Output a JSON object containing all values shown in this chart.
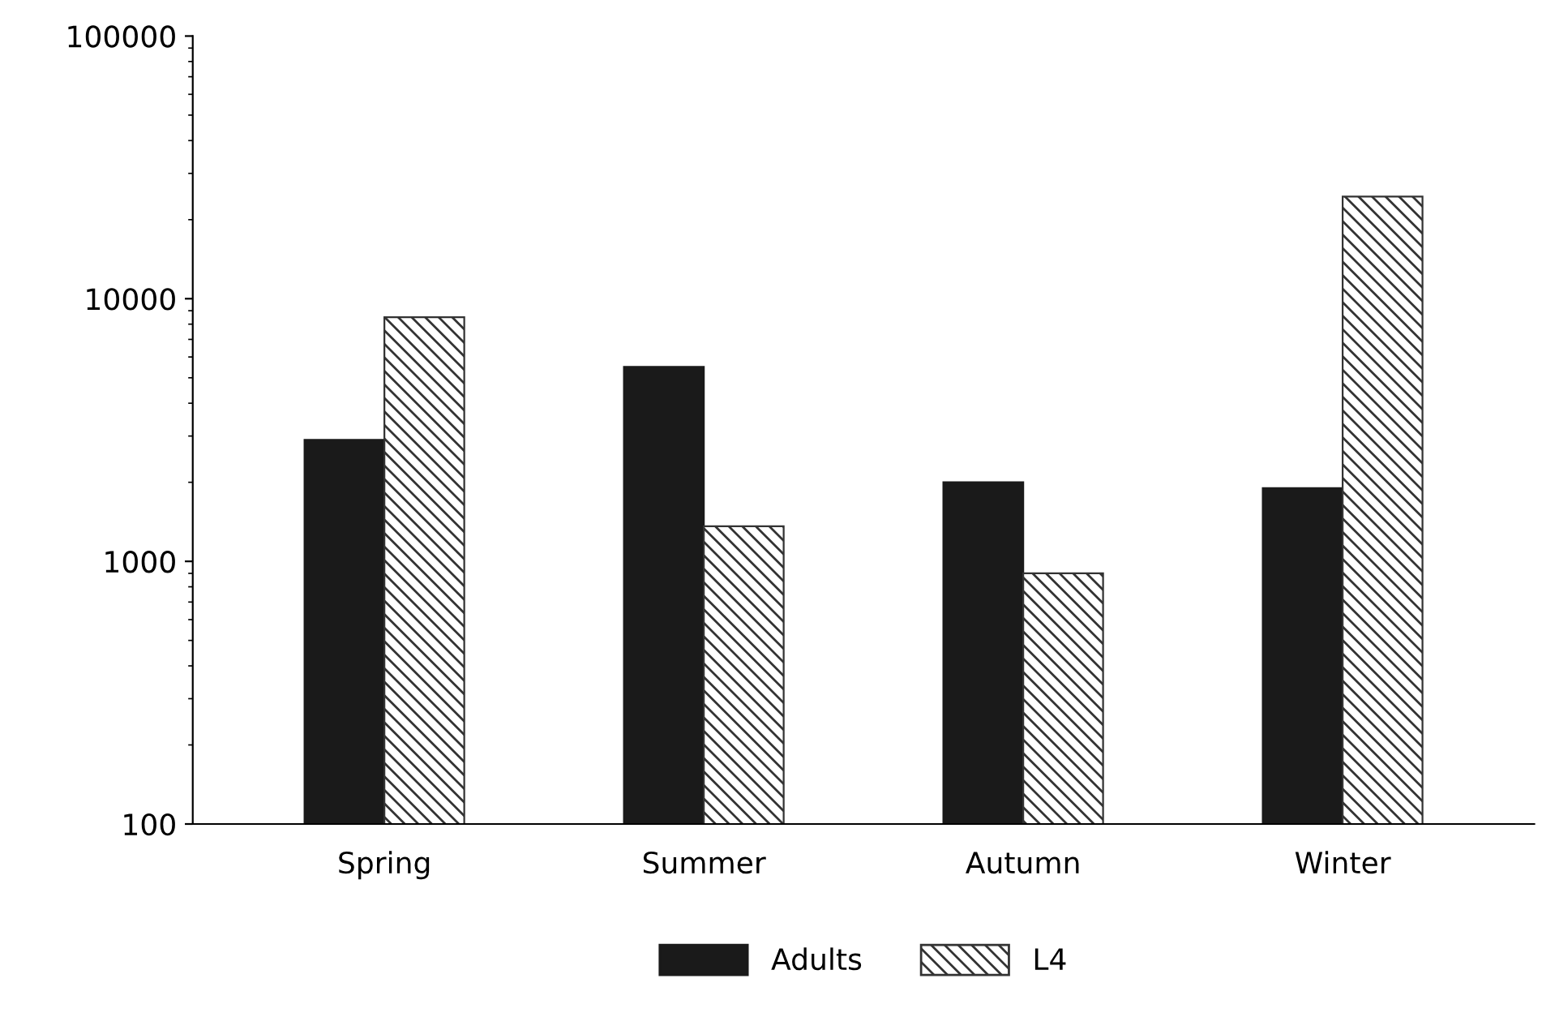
{
  "chart_data": {
    "type": "bar",
    "categories": [
      "Spring",
      "Summer",
      "Autumn",
      "Winter"
    ],
    "series": [
      {
        "name": "Adults",
        "color": "#1a1a1a",
        "values": [
          2900,
          5500,
          2000,
          1900
        ]
      },
      {
        "name": "L4",
        "color": "#333333",
        "values": [
          8500,
          1360,
          900,
          24500
        ]
      }
    ],
    "log": "y",
    "ylim": [
      100,
      100000
    ],
    "yticks": [
      100,
      1000,
      10000,
      100000
    ],
    "grid": false,
    "legend": "bottom"
  }
}
